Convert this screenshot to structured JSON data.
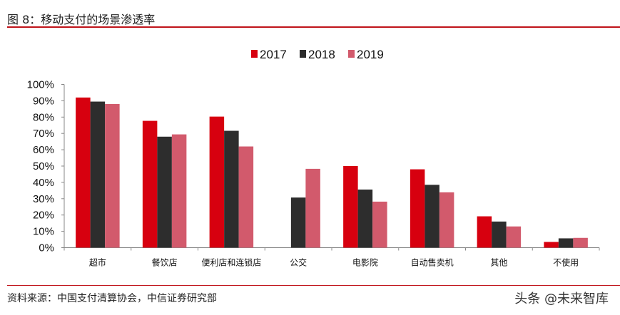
{
  "header": {
    "title": "图 8：移动支付的场景渗透率"
  },
  "footer": {
    "source": "资料来源：中国支付清算协会，中信证券研究部",
    "watermark": "头条 @未来智库"
  },
  "chart_data": {
    "type": "bar",
    "title": "",
    "xlabel": "",
    "ylabel": "",
    "ylim": [
      0,
      100
    ],
    "yticks": [
      "0%",
      "10%",
      "20%",
      "30%",
      "40%",
      "50%",
      "60%",
      "70%",
      "80%",
      "90%",
      "100%"
    ],
    "grid": false,
    "legend": "top-center",
    "categories": [
      "超市",
      "餐饮店",
      "便利店和连锁店",
      "公交",
      "电影院",
      "自动售卖机",
      "其他",
      "不使用"
    ],
    "series": [
      {
        "name": "2017",
        "color": "#d7000f",
        "values": [
          92,
          77.7,
          80.3,
          0,
          50,
          48,
          19.2,
          3.5
        ]
      },
      {
        "name": "2018",
        "color": "#2d2d2d",
        "values": [
          89.5,
          68,
          71.6,
          30.7,
          35.6,
          38.5,
          16,
          5.7
        ]
      },
      {
        "name": "2019",
        "color": "#d25a6c",
        "values": [
          88,
          69.4,
          62,
          48.3,
          28.2,
          33.9,
          13,
          6
        ]
      }
    ]
  }
}
